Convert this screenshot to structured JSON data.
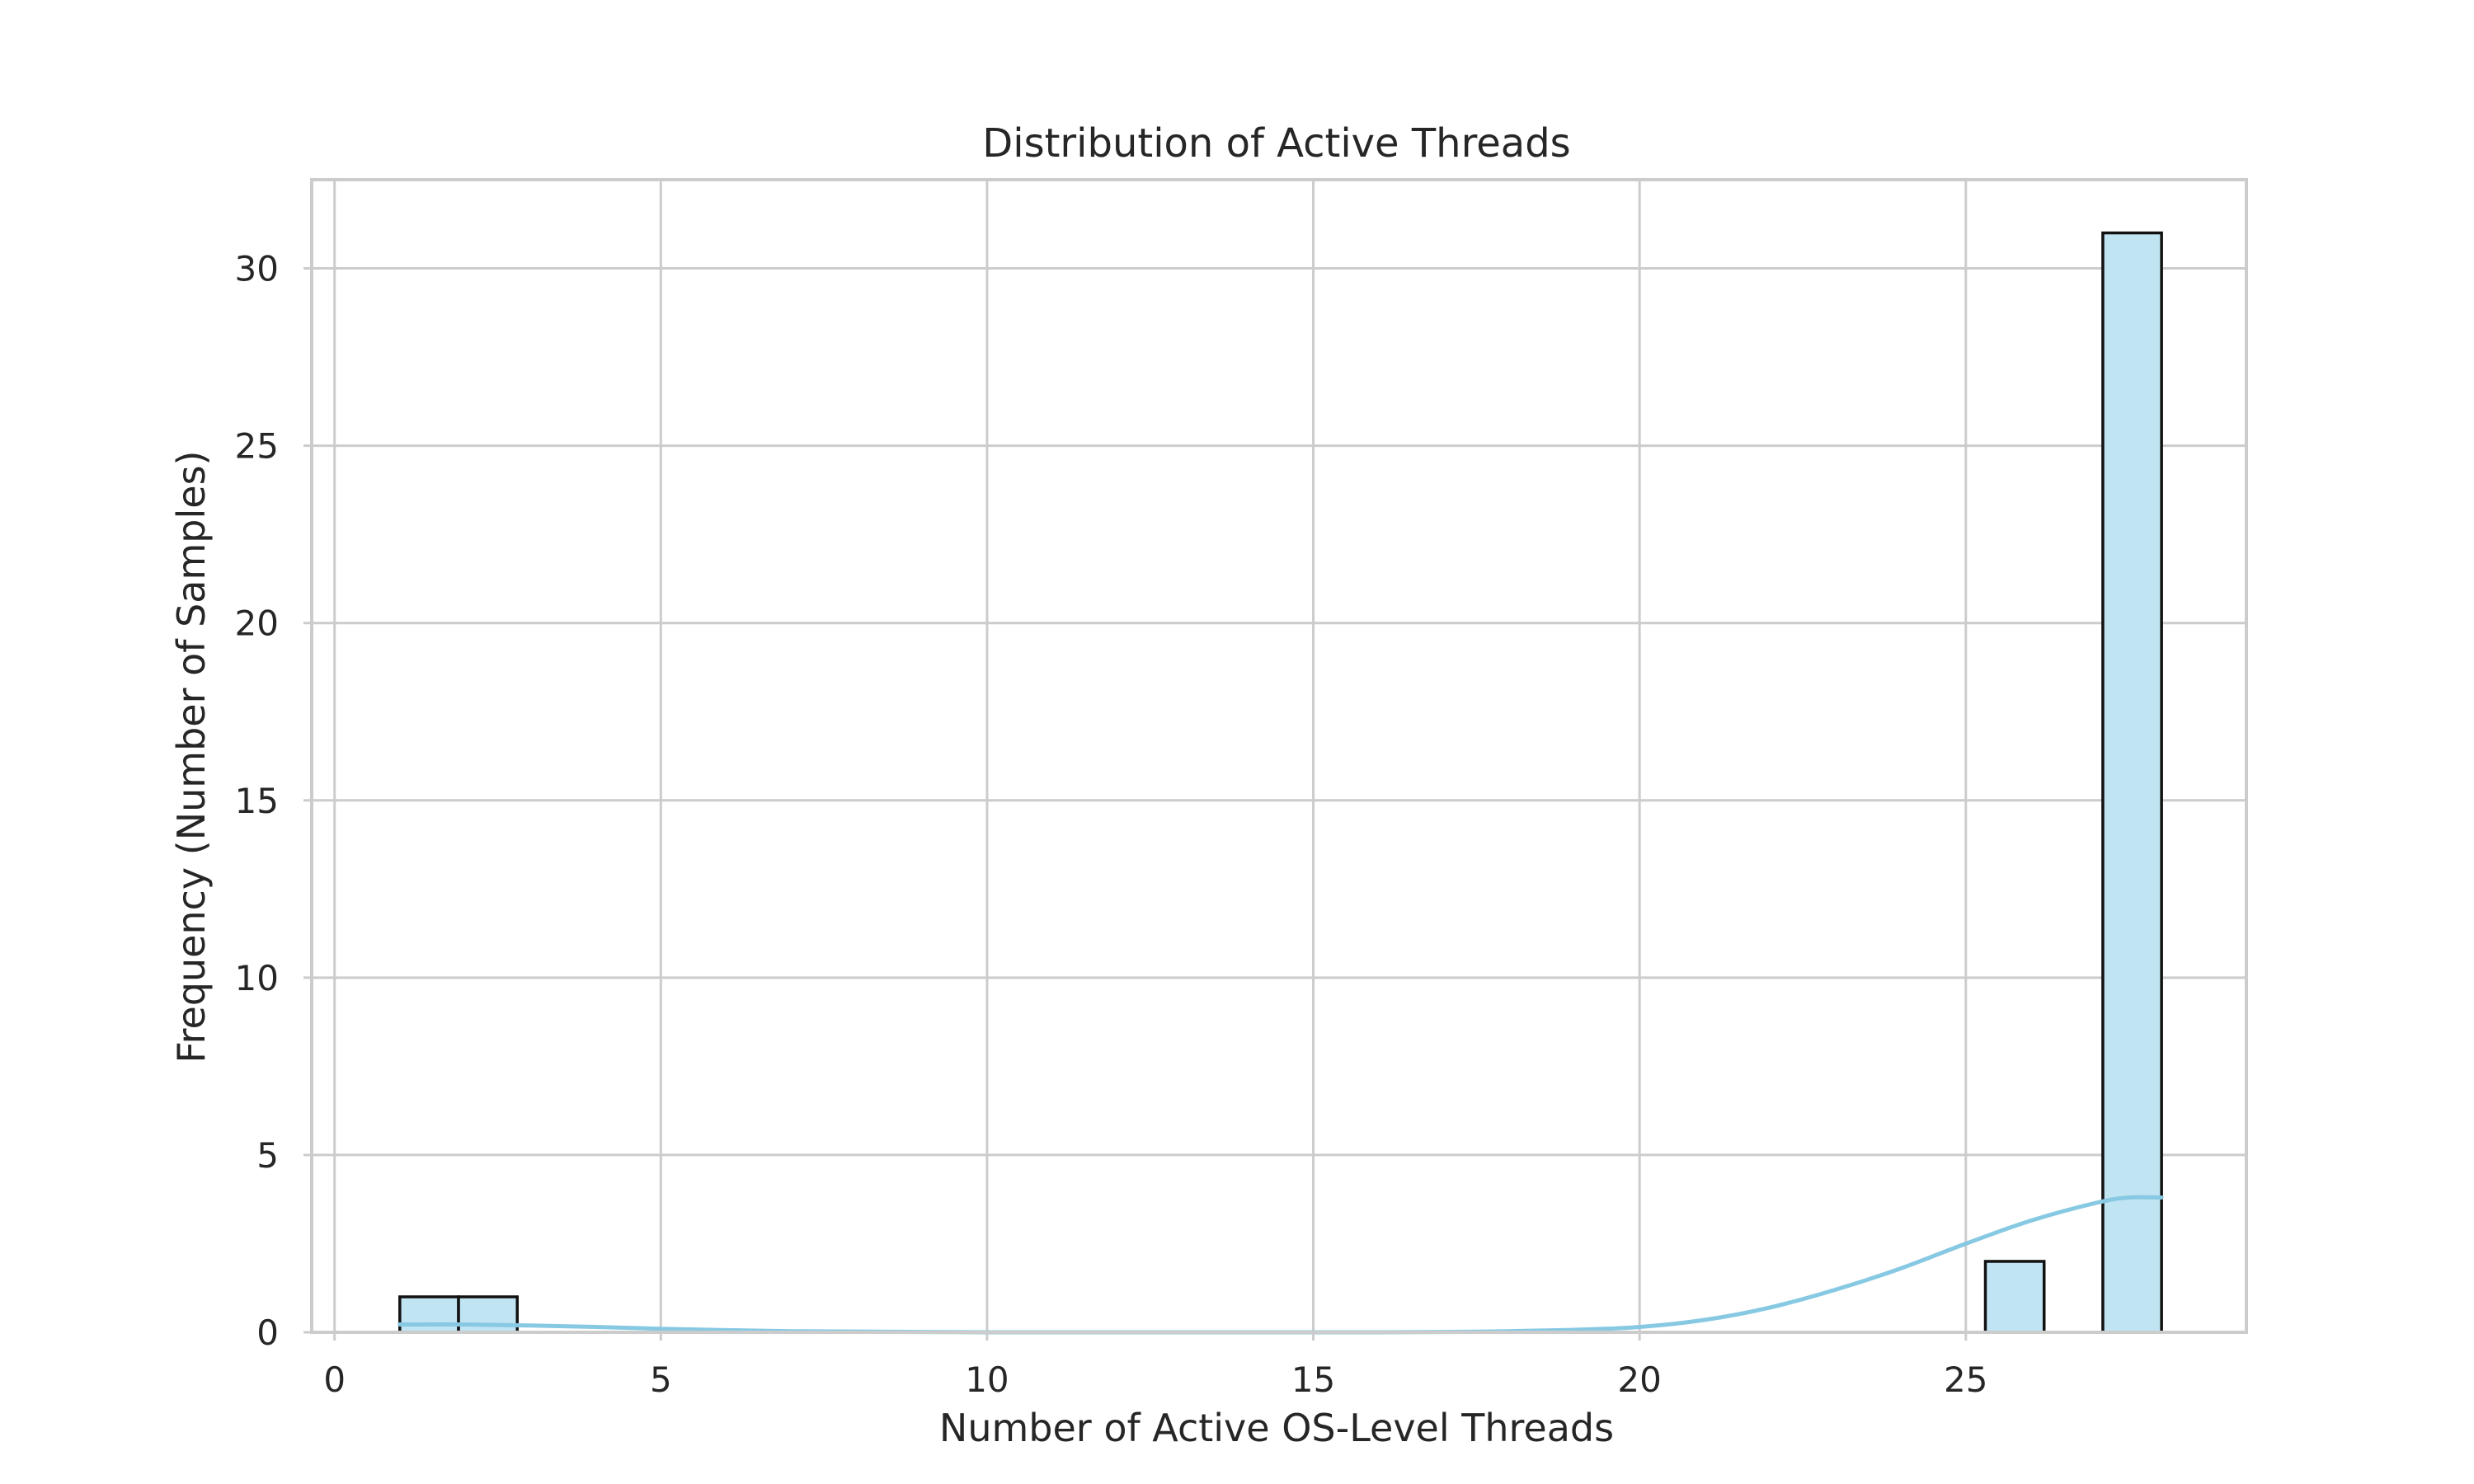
{
  "chart_data": {
    "type": "bar",
    "title": "Distribution of Active Threads",
    "xlabel": "Number of Active OS-Level Threads",
    "ylabel": "Frequency (Number of Samples)",
    "xlim": [
      -0.35,
      29.3
    ],
    "ylim": [
      0,
      32.5
    ],
    "xticks": [
      0,
      5,
      10,
      15,
      20,
      25
    ],
    "yticks": [
      0,
      5,
      10,
      15,
      20,
      25,
      30
    ],
    "grid": true,
    "colors": {
      "bar_fill": "#c1e4f3",
      "bar_edge": "#111111",
      "kde": "#87c9e3"
    },
    "bins": [
      {
        "x0": 1.0,
        "x1": 1.9,
        "count": 1
      },
      {
        "x0": 1.9,
        "x1": 2.8,
        "count": 1
      },
      {
        "x0": 25.3,
        "x1": 26.2,
        "count": 2
      },
      {
        "x0": 27.1,
        "x1": 28.0,
        "count": 31
      }
    ],
    "kde": {
      "x": [
        1.0,
        2.0,
        3.0,
        4.0,
        5.0,
        6.0,
        7.0,
        8.0,
        9.0,
        10.0,
        11.0,
        12.0,
        13.0,
        14.0,
        15.0,
        16.0,
        17.0,
        18.0,
        19.0,
        20.0,
        21.0,
        22.0,
        23.0,
        24.0,
        25.0,
        26.0,
        27.0,
        27.5,
        28.0
      ],
      "y": [
        0.22,
        0.22,
        0.19,
        0.15,
        0.1,
        0.06,
        0.03,
        0.02,
        0.01,
        0.0,
        0.0,
        0.0,
        0.0,
        0.0,
        0.0,
        0.0,
        0.01,
        0.03,
        0.07,
        0.15,
        0.35,
        0.7,
        1.2,
        1.8,
        2.5,
        3.15,
        3.65,
        3.8,
        3.8
      ]
    }
  }
}
